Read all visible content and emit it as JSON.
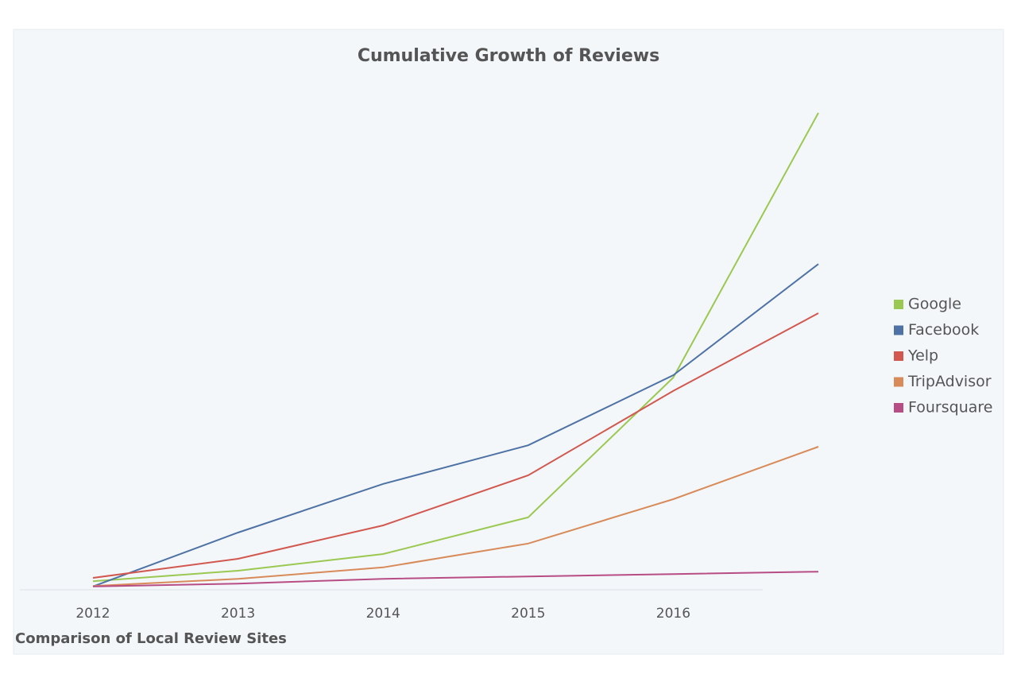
{
  "chart_data": {
    "type": "line",
    "title": "Cumulative Growth of Reviews",
    "subtitle": "Comparison of Local Review Sites",
    "categories": [
      "2012",
      "2013",
      "2014",
      "2015",
      "2016",
      null
    ],
    "series": [
      {
        "name": "Google",
        "color": "#9bc850",
        "values": [
          1.8,
          4,
          7.5,
          15.2,
          44.5,
          100
        ]
      },
      {
        "name": "Facebook",
        "color": "#4e72a6",
        "values": [
          0.7,
          12,
          22.2,
          30.3,
          45,
          68.3
        ]
      },
      {
        "name": "Yelp",
        "color": "#d2584f",
        "values": [
          2.5,
          6.5,
          13.5,
          24,
          41.7,
          58
        ]
      },
      {
        "name": "TripAdvisor",
        "color": "#d88a58",
        "values": [
          0.8,
          2.3,
          4.7,
          9.7,
          19,
          30
        ]
      },
      {
        "name": "Foursquare",
        "color": "#b84d85",
        "values": [
          0.7,
          1.3,
          2.3,
          2.8,
          3.3,
          3.8
        ]
      }
    ],
    "ylim": [
      0,
      100
    ],
    "legend": "right"
  }
}
